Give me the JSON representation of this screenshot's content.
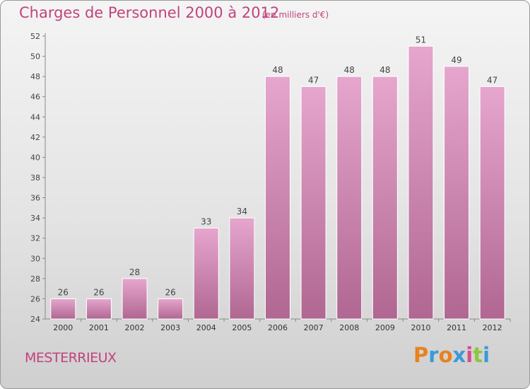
{
  "header": {
    "title": "Charges de Personnel 2000 à 2012",
    "subtitle": "(en milliers d'€)"
  },
  "footer": {
    "commune": "MESTERRIEUX",
    "logo_text": "Proxiti",
    "logo_colors": [
      "#e8821e",
      "#3c9ad6",
      "#e8821e",
      "#3c9ad6",
      "#d94a8c",
      "#8cc63f",
      "#3c9ad6"
    ]
  },
  "colors": {
    "accent": "#c2427e",
    "bar_top": "#e6a6cd",
    "bar_bottom": "#b06792"
  },
  "chart_data": {
    "type": "bar",
    "categories": [
      "2000",
      "2001",
      "2002",
      "2003",
      "2004",
      "2005",
      "2006",
      "2007",
      "2008",
      "2009",
      "2010",
      "2011",
      "2012"
    ],
    "values": [
      26,
      26,
      28,
      26,
      33,
      34,
      48,
      47,
      48,
      48,
      51,
      49,
      47
    ],
    "ylim": [
      24,
      52
    ],
    "yticks": [
      24,
      26,
      28,
      30,
      32,
      34,
      36,
      38,
      40,
      42,
      44,
      46,
      48,
      50,
      52
    ],
    "grid": false,
    "data_labels": true
  }
}
